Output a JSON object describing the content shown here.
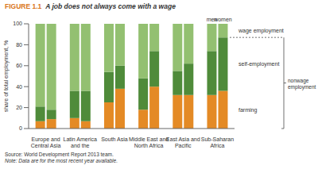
{
  "chart_data": {
    "type": "bar",
    "stacked": true,
    "figure_label": "FIGURE 1.1",
    "title": "A job does not always come with a wage",
    "y_label": "share of total employment, %",
    "categories": [
      "Europe and Central Asia",
      "Latin America and the Caribbean",
      "South Asia",
      "Middle East and North Africa",
      "East Asia and Pacific",
      "Sub-Saharan Africa"
    ],
    "groups": [
      "men",
      "women"
    ],
    "series": [
      {
        "name": "farming",
        "color": "#e48a25",
        "values": {
          "men": [
            7,
            10,
            25,
            18,
            32,
            32
          ],
          "women": [
            9,
            7,
            38,
            40,
            32,
            36
          ]
        }
      },
      {
        "name": "self-employment",
        "color": "#4f8b3a",
        "values": {
          "men": [
            14,
            26,
            29,
            30,
            23,
            42
          ],
          "women": [
            9,
            29,
            22,
            34,
            30,
            51
          ]
        }
      },
      {
        "name": "wage employment",
        "color": "#93c071",
        "values": {
          "men": [
            79,
            64,
            46,
            52,
            45,
            26
          ],
          "women": [
            82,
            64,
            40,
            26,
            38,
            13
          ]
        }
      }
    ],
    "bracket": {
      "label": "nonwage employment",
      "series": [
        "farming",
        "self-employment"
      ]
    },
    "ylim": [
      0,
      100
    ],
    "yticks": [
      0,
      20,
      40,
      60,
      80,
      100
    ],
    "grid": false,
    "source": "Source: World Development Report 2013 team.",
    "note": "Note: Data are for the most recent year available."
  }
}
